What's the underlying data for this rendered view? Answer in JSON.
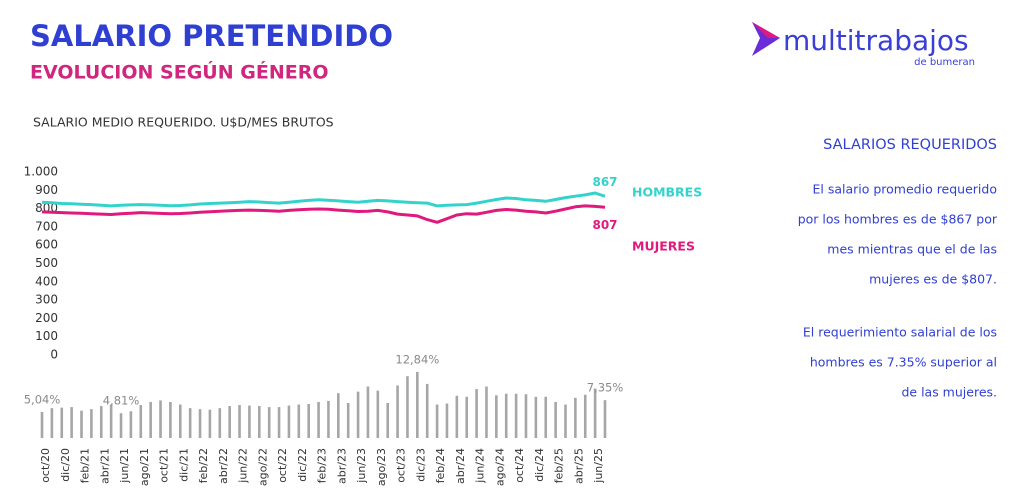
{
  "header": {
    "title": "SALARIO PRETENDIDO",
    "subtitle": "EVOLUCION SEGÚN GÉNERO"
  },
  "logo": {
    "name": "multitrabajos",
    "tagline": "de bumeran"
  },
  "chart_data": [
    {
      "type": "line",
      "title": "SALARIO MEDIO REQUERIDO. U$D/MES BRUTOS",
      "ylim": [
        0,
        1000
      ],
      "yticks": [
        0,
        100,
        200,
        300,
        400,
        500,
        600,
        700,
        800,
        900,
        {
          "value": 1000,
          "label": "1.000"
        }
      ],
      "grid": false,
      "series": [
        {
          "name": "HOMBRES",
          "color": "#33d3cc",
          "values": [
            835,
            832,
            828,
            826,
            824,
            822,
            818,
            815,
            818,
            820,
            822,
            820,
            818,
            816,
            817,
            820,
            825,
            828,
            830,
            832,
            835,
            838,
            836,
            833,
            830,
            835,
            840,
            845,
            848,
            846,
            842,
            838,
            835,
            840,
            845,
            842,
            838,
            835,
            832,
            830,
            815,
            818,
            820,
            822,
            830,
            840,
            850,
            858,
            855,
            848,
            845,
            840,
            850,
            860,
            868,
            875,
            885,
            867
          ],
          "value_labels": [
            null,
            null,
            null,
            null,
            null,
            null,
            null,
            null,
            null,
            null,
            null,
            null,
            null,
            null,
            null,
            null,
            null,
            null,
            null,
            null,
            null,
            null,
            null,
            null,
            null,
            null,
            null,
            null,
            null,
            null,
            null,
            null,
            null,
            null,
            null,
            null,
            null,
            null,
            null,
            null,
            null,
            null,
            null,
            null,
            null,
            null,
            null,
            null,
            null,
            null,
            null,
            null,
            null,
            null,
            null,
            null,
            null,
            "867"
          ]
        },
        {
          "name": "MUJERES",
          "color": "#e0197d",
          "values": [
            782,
            780,
            778,
            776,
            775,
            772,
            770,
            768,
            772,
            775,
            778,
            776,
            774,
            772,
            773,
            776,
            780,
            783,
            786,
            788,
            790,
            792,
            790,
            788,
            786,
            790,
            794,
            796,
            798,
            796,
            792,
            788,
            784,
            786,
            790,
            782,
            770,
            765,
            760,
            740,
            725,
            745,
            765,
            772,
            770,
            780,
            790,
            795,
            792,
            786,
            782,
            776,
            786,
            798,
            810,
            815,
            812,
            807
          ],
          "value_labels": [
            null,
            null,
            null,
            null,
            null,
            null,
            null,
            null,
            null,
            null,
            null,
            null,
            null,
            null,
            null,
            null,
            null,
            null,
            null,
            null,
            null,
            null,
            null,
            null,
            null,
            null,
            null,
            null,
            null,
            null,
            null,
            null,
            null,
            null,
            null,
            null,
            null,
            null,
            null,
            null,
            null,
            null,
            null,
            null,
            null,
            null,
            null,
            null,
            null,
            null,
            null,
            null,
            null,
            null,
            null,
            null,
            null,
            "807"
          ]
        }
      ]
    },
    {
      "type": "bar",
      "color": "#a6a6a6",
      "categories": [
        "oct/20",
        null,
        "dic/20",
        null,
        "feb/21",
        null,
        "abr/21",
        null,
        "jun/21",
        null,
        "ago/21",
        null,
        "oct/21",
        null,
        "dic/21",
        null,
        "feb/22",
        null,
        "abr/22",
        null,
        "jun/22",
        null,
        "ago/22",
        null,
        "oct/22",
        null,
        "dic/22",
        null,
        "feb/23",
        null,
        "abr/23",
        null,
        "jun/23",
        null,
        "ago/23",
        null,
        "oct/23",
        null,
        "dic/23",
        null,
        "feb/24",
        null,
        "abr/24",
        null,
        "jun/24",
        null,
        "ago/24",
        null,
        "oct/24",
        null,
        "dic/24",
        null,
        "feb/25",
        null,
        "abr/25",
        null,
        "jun/25",
        null
      ],
      "values": [
        5.04,
        5.8,
        5.9,
        6.0,
        5.3,
        5.6,
        6.2,
        6.5,
        4.81,
        5.2,
        6.4,
        7.0,
        7.3,
        7.0,
        6.5,
        5.8,
        5.6,
        5.5,
        5.8,
        6.2,
        6.4,
        6.3,
        6.2,
        6.0,
        6.0,
        6.3,
        6.5,
        6.6,
        7.0,
        7.2,
        8.7,
        6.8,
        9.0,
        10.0,
        9.2,
        6.8,
        10.2,
        12.0,
        12.84,
        10.5,
        6.5,
        6.7,
        8.2,
        8.0,
        9.5,
        10.0,
        8.3,
        8.6,
        8.6,
        8.5,
        8.0,
        8.0,
        7.0,
        6.5,
        7.8,
        8.4,
        9.6,
        7.35
      ],
      "value_labels": [
        "5,04%",
        null,
        null,
        null,
        null,
        null,
        null,
        null,
        "4,81%",
        null,
        null,
        null,
        null,
        null,
        null,
        null,
        null,
        null,
        null,
        null,
        null,
        null,
        null,
        null,
        null,
        null,
        null,
        null,
        null,
        null,
        null,
        null,
        null,
        null,
        null,
        null,
        null,
        null,
        "12,84%",
        null,
        null,
        null,
        null,
        null,
        null,
        null,
        null,
        null,
        null,
        null,
        null,
        null,
        null,
        null,
        null,
        null,
        null,
        "7,35%"
      ]
    }
  ],
  "panel": {
    "title": "SALARIOS REQUERIDOS",
    "paragraphs": [
      [
        "El salario promedio requerido",
        "por los hombres es de $867 por",
        "mes mientras que el de las",
        "mujeres es de $807."
      ],
      [
        "El requerimiento salarial de los",
        "hombres es 7.35% superior al",
        "de las mujeres."
      ]
    ]
  }
}
